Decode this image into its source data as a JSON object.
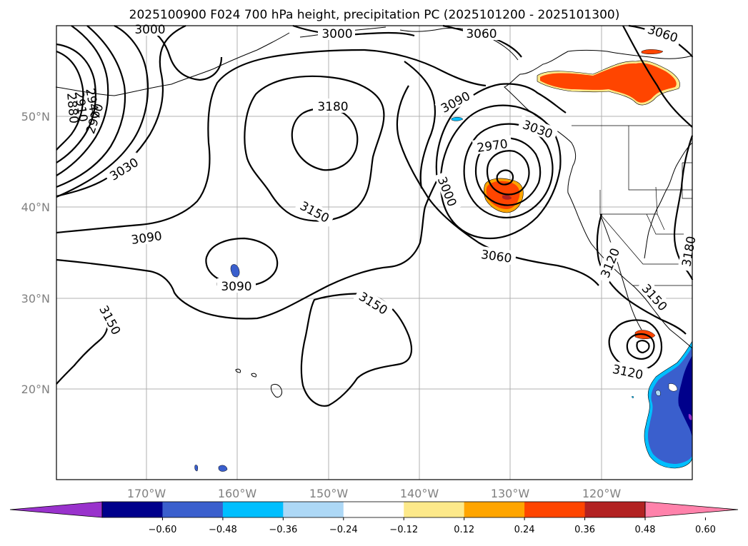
{
  "title": "2025100900 F024 700 hPa height, precipitation PC (2025101200 - 2025101300)",
  "lat_labels": [
    "50°N",
    "40°N",
    "30°N",
    "20°N"
  ],
  "lon_labels": [
    "170°W",
    "160°W",
    "150°W",
    "140°W",
    "130°W",
    "120°W"
  ],
  "colorbar": {
    "ticks": [
      "−0.60",
      "−0.48",
      "−0.36",
      "−0.24",
      "−0.12",
      "0.12",
      "0.24",
      "0.36",
      "0.48",
      "0.60"
    ],
    "colors": [
      "#9932cc",
      "#00008b",
      "#3a5fcd",
      "#00bfff",
      "#add8f6",
      "#ffffff",
      "#fde98a",
      "#ffa500",
      "#ff4500",
      "#b22222",
      "#ff82ab"
    ]
  },
  "contour_labels": [
    "3000",
    "3000",
    "3060",
    "3060",
    "2880",
    "2940",
    "2910",
    "2970",
    "3180",
    "3090",
    "3030",
    "2970",
    "3030",
    "3000",
    "3150",
    "3090",
    "3090",
    "3060",
    "3150",
    "3150",
    "3120",
    "3150",
    "3120",
    "3180"
  ],
  "precip_colors": {
    "orange_red": "#ff4500",
    "orange": "#ffa500",
    "yellow": "#fde98a",
    "light_blue": "#add8f6",
    "sky_blue": "#00bfff",
    "mid_blue": "#3a5fcd",
    "navy": "#00008b",
    "purple": "#9932cc",
    "dark_red": "#b22222"
  }
}
